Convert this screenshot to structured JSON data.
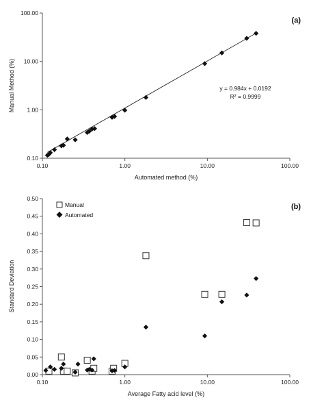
{
  "chart_data": [
    {
      "type": "scatter",
      "panel_label": "(a)",
      "xlabel": "Automated method (%)",
      "ylabel": "Manual Method (%)",
      "xscale": "log",
      "yscale": "log",
      "xlim": [
        0.1,
        100
      ],
      "ylim": [
        0.1,
        100
      ],
      "xticks": [
        "0.10",
        "1.00",
        "10.00",
        "100.00"
      ],
      "yticks": [
        "0.10",
        "1.00",
        "10.00",
        "100.00"
      ],
      "grid": false,
      "trendline": {
        "equation": "y = 0.984x + 0.0192",
        "r_squared": "R² = 0.9999"
      },
      "series": [
        {
          "marker": "diamond",
          "x": [
            0.115,
            0.12,
            0.125,
            0.14,
            0.17,
            0.18,
            0.2,
            0.25,
            0.35,
            0.37,
            0.4,
            0.43,
            0.7,
            0.75,
            1.0,
            1.8,
            9.3,
            15.0,
            30.0,
            39.0
          ],
          "y": [
            0.115,
            0.12,
            0.13,
            0.15,
            0.18,
            0.185,
            0.25,
            0.24,
            0.34,
            0.36,
            0.4,
            0.41,
            0.7,
            0.73,
            0.98,
            1.8,
            9.0,
            15.0,
            30.0,
            38.0
          ]
        }
      ]
    },
    {
      "type": "scatter",
      "panel_label": "(b)",
      "xlabel": "Average Fatty acid level (%)",
      "ylabel": "Standard Deviation",
      "xscale": "log",
      "xlim": [
        0.1,
        100
      ],
      "ylim": [
        0,
        0.5
      ],
      "xticks": [
        "0.10",
        "1.00",
        "10.00",
        "100.00"
      ],
      "yticks": [
        "0.00",
        "0.05",
        "0.10",
        "0.15",
        "0.20",
        "0.25",
        "0.30",
        "0.35",
        "0.40",
        "0.45",
        "0.50"
      ],
      "grid": false,
      "legend": "top-left",
      "series": [
        {
          "name": "Manual",
          "marker": "open-square",
          "x": [
            0.12,
            0.17,
            0.18,
            0.2,
            0.25,
            0.35,
            0.4,
            0.42,
            0.7,
            0.73,
            1.0,
            1.8,
            9.3,
            15.0,
            30.0,
            39.0
          ],
          "y": [
            0.01,
            0.05,
            0.01,
            0.01,
            0.005,
            0.041,
            0.01,
            0.018,
            0.01,
            0.018,
            0.032,
            0.338,
            0.228,
            0.228,
            0.432,
            0.431
          ]
        },
        {
          "name": "Automated",
          "marker": "diamond",
          "x": [
            0.11,
            0.125,
            0.14,
            0.17,
            0.18,
            0.25,
            0.27,
            0.35,
            0.37,
            0.4,
            0.42,
            0.7,
            0.75,
            1.0,
            1.8,
            9.3,
            15.0,
            30.0,
            39.0
          ],
          "y": [
            0.012,
            0.022,
            0.015,
            0.018,
            0.03,
            0.007,
            0.03,
            0.013,
            0.015,
            0.013,
            0.045,
            0.011,
            0.012,
            0.022,
            0.135,
            0.11,
            0.207,
            0.226,
            0.273
          ]
        }
      ]
    }
  ]
}
